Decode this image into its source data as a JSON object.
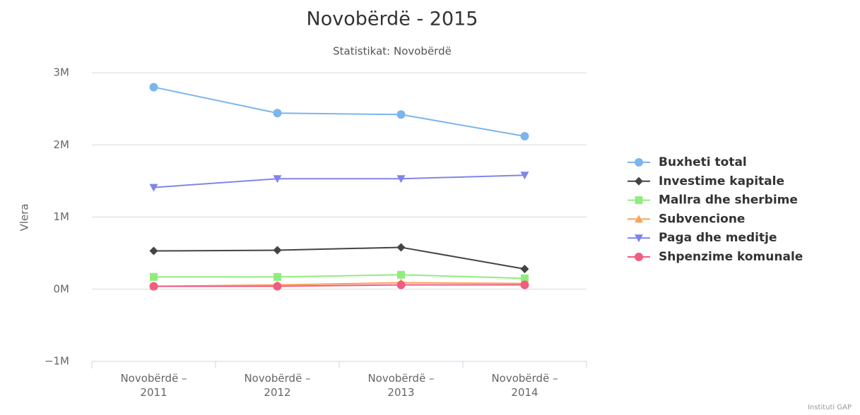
{
  "chart_data": {
    "type": "line",
    "title": "Novobërdë - 2015",
    "subtitle": "Statistikat: Novobërdë",
    "y_label": "Vlera",
    "credits": "Instituti GAP",
    "categories": [
      "Novobërdë – 2011",
      "Novobërdë – 2012",
      "Novobërdë – 2013",
      "Novobërdë – 2014"
    ],
    "ylim": [
      -1000000,
      3000000
    ],
    "yticks": [
      {
        "value": -1000000,
        "label": "−1M"
      },
      {
        "value": 0,
        "label": "0M"
      },
      {
        "value": 1000000,
        "label": "1M"
      },
      {
        "value": 2000000,
        "label": "2M"
      },
      {
        "value": 3000000,
        "label": "3M"
      }
    ],
    "grid": true,
    "legend": "right",
    "series": [
      {
        "name": "Buxheti total",
        "color": "#7cb5ec",
        "marker": "circle",
        "values": [
          2800000,
          2440000,
          2420000,
          2120000
        ]
      },
      {
        "name": "Investime kapitale",
        "color": "#434348",
        "marker": "diamond",
        "values": [
          530000,
          540000,
          580000,
          280000
        ]
      },
      {
        "name": "Mallra dhe sherbime",
        "color": "#90ed7d",
        "marker": "square",
        "values": [
          170000,
          170000,
          200000,
          150000
        ]
      },
      {
        "name": "Subvencione",
        "color": "#f7a35c",
        "marker": "triangle",
        "values": [
          40000,
          60000,
          90000,
          80000
        ]
      },
      {
        "name": "Paga dhe meditje",
        "color": "#8085e9",
        "marker": "triangle-down",
        "values": [
          1410000,
          1530000,
          1530000,
          1580000
        ]
      },
      {
        "name": "Shpenzime komunale",
        "color": "#f15c80",
        "marker": "circle",
        "values": [
          40000,
          40000,
          60000,
          60000
        ]
      }
    ]
  }
}
